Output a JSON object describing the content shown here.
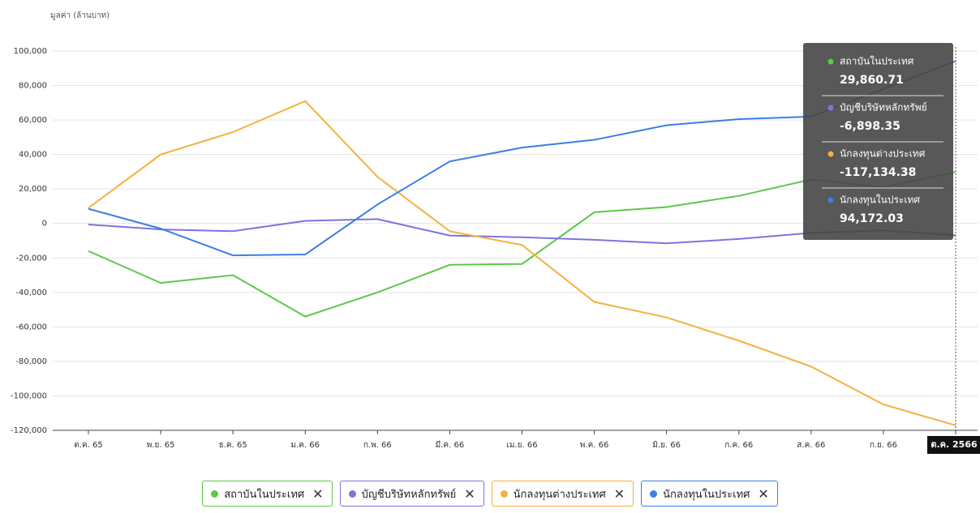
{
  "chart_data": {
    "type": "line",
    "y_axis_label": "มูลค่า (ล้านบาท)",
    "categories": [
      "ต.ค. 65",
      "พ.ย. 65",
      "ธ.ค. 65",
      "ม.ค. 66",
      "ก.พ. 66",
      "มี.ค. 66",
      "เม.ย. 66",
      "พ.ค. 66",
      "มิ.ย. 66",
      "ก.ค. 66",
      "ส.ค. 66",
      "ก.ย. 66",
      "ต.ค. 2566"
    ],
    "ylim": [
      -120000,
      100000
    ],
    "yticks": [
      {
        "value": 100000,
        "label": "100,000"
      },
      {
        "value": 80000,
        "label": "80,000"
      },
      {
        "value": 60000,
        "label": "60,000"
      },
      {
        "value": 40000,
        "label": "40,000"
      },
      {
        "value": 20000,
        "label": "20,000"
      },
      0,
      {
        "value": -20000,
        "label": "-20,000"
      },
      {
        "value": -40000,
        "label": "-40,000"
      },
      {
        "value": -60000,
        "label": "-60,000"
      },
      {
        "value": -80000,
        "label": "-80,000"
      },
      {
        "value": -100000,
        "label": "-100,000"
      },
      {
        "value": -120000,
        "label": "-120,000"
      }
    ],
    "grid": true,
    "legend": "bottom",
    "series": [
      {
        "name": "สถาบันในประเทศ",
        "color": "#5cc84a",
        "values": [
          -16000,
          -34500,
          -30000,
          -54000,
          -40000,
          -24000,
          -23500,
          6500,
          9500,
          16000,
          25500,
          21000,
          29860.71
        ],
        "value_labels": [
          null,
          null,
          null,
          null,
          null,
          null,
          null,
          null,
          null,
          null,
          null,
          null,
          "29,860.71"
        ]
      },
      {
        "name": "บัญชีบริษัทหลักทรัพย์",
        "color": "#7b74de",
        "values": [
          -600,
          -3500,
          -4500,
          1500,
          2500,
          -7000,
          -8000,
          -9500,
          -11500,
          -9000,
          -5500,
          -4000,
          -6898.35
        ],
        "value_labels": [
          null,
          null,
          null,
          null,
          null,
          null,
          null,
          null,
          null,
          null,
          null,
          null,
          "-6,898.35"
        ]
      },
      {
        "name": "นักลงทุนต่างประเทศ",
        "color": "#f5b041",
        "values": [
          9000,
          40000,
          53000,
          71000,
          27000,
          -4500,
          -12500,
          -45500,
          -54500,
          -68000,
          -83000,
          -105000,
          -117134.38
        ],
        "value_labels": [
          null,
          null,
          null,
          null,
          null,
          null,
          null,
          null,
          null,
          null,
          null,
          null,
          "-117,134.38"
        ]
      },
      {
        "name": "นักลงทุนในประเทศ",
        "color": "#3b7ee8",
        "values": [
          8500,
          -3000,
          -18500,
          -18000,
          11000,
          36000,
          44000,
          48500,
          57000,
          60500,
          62000,
          78000,
          94172.03
        ],
        "value_labels": [
          null,
          null,
          null,
          null,
          null,
          null,
          null,
          null,
          null,
          null,
          null,
          null,
          "94,172.03"
        ]
      }
    ]
  }
}
